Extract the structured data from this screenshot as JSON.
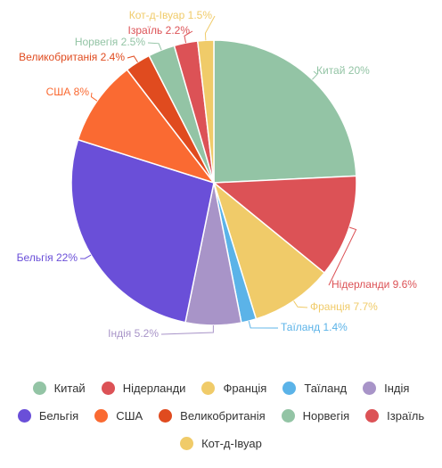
{
  "chart_data": {
    "type": "pie",
    "categories": [
      "Китай",
      "Нідерланди",
      "Франція",
      "Таїланд",
      "Індія",
      "Бельгія",
      "США",
      "Великобританія",
      "Норвегія",
      "Ізраїль",
      "Кот-д-Івуар"
    ],
    "values": [
      20,
      9.6,
      7.7,
      1.4,
      5.2,
      22,
      8,
      2.4,
      2.5,
      2.2,
      1.5
    ],
    "value_labels": [
      "20%",
      "9.6%",
      "7.7%",
      "1.4%",
      "5.2%",
      "22%",
      "8%",
      "2.4%",
      "2.5%",
      "2.2%",
      "1.5%"
    ],
    "colors": [
      "#93c4a5",
      "#dc5256",
      "#f0cb69",
      "#5bb3e8",
      "#a894c8",
      "#6a4fd8",
      "#fa6a32",
      "#e04b1f",
      "#93c4a5",
      "#dc5256",
      "#f0cb69"
    ],
    "legend": "bottom"
  }
}
